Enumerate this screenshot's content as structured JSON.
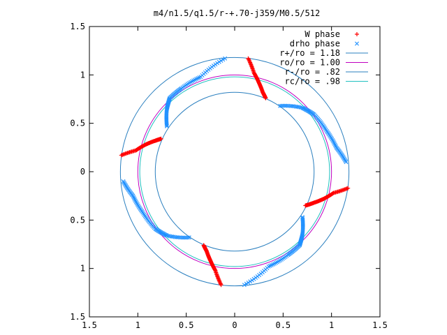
{
  "chart_data": {
    "type": "scatter",
    "title": "m4/n1.5/q1.5/r-+.70-j359/M0.5/512",
    "xlabel": "",
    "ylabel": "",
    "xlim": [
      -1.5,
      1.5
    ],
    "ylim": [
      -1.5,
      1.5
    ],
    "x_ticks": [
      -1.5,
      -1,
      -0.5,
      0,
      0.5,
      1,
      1.5
    ],
    "y_ticks": [
      -1.5,
      -1,
      -0.5,
      0,
      0.5,
      1,
      1.5
    ],
    "x_tick_labels": [
      "1.5",
      "1",
      "0.5",
      "0",
      "0.5",
      "1",
      "1.5"
    ],
    "y_tick_labels": [
      "1.5",
      "1",
      "0.5",
      "0",
      "0.5",
      "1",
      "1.5"
    ],
    "grid": false,
    "legend_position": "top-right",
    "circles": [
      {
        "name": "r+/ro = 1.18",
        "radius": 1.18,
        "color": "#2a7fbf"
      },
      {
        "name": "ro/ro = 1.00",
        "radius": 1.0,
        "color": "#c000c0"
      },
      {
        "name": "r-/ro = .82",
        "radius": 0.82,
        "color": "#2a7fbf"
      },
      {
        "name": "rc/ro = .98",
        "radius": 0.98,
        "color": "#20c0c0"
      }
    ],
    "series": [
      {
        "name": "W phase",
        "marker": "+",
        "color": "#ff0000",
        "arcs": [
          [
            [
              0.14,
              1.17
            ],
            [
              0.2,
              1.02
            ],
            [
              0.25,
              0.92
            ],
            [
              0.29,
              0.82
            ],
            [
              0.32,
              0.76
            ]
          ],
          [
            [
              -1.17,
              0.17
            ],
            [
              -1.02,
              0.22
            ],
            [
              -0.92,
              0.28
            ],
            [
              -0.82,
              0.32
            ],
            [
              -0.76,
              0.34
            ]
          ],
          [
            [
              -0.14,
              -1.17
            ],
            [
              -0.2,
              -1.02
            ],
            [
              -0.25,
              -0.92
            ],
            [
              -0.29,
              -0.82
            ],
            [
              -0.32,
              -0.76
            ]
          ],
          [
            [
              1.17,
              -0.17
            ],
            [
              1.02,
              -0.22
            ],
            [
              0.92,
              -0.28
            ],
            [
              0.82,
              -0.32
            ],
            [
              0.73,
              -0.35
            ]
          ]
        ]
      },
      {
        "name": "drho phase",
        "marker": "x",
        "color": "#1e90ff",
        "arcs": [
          [
            [
              -0.1,
              1.17
            ],
            [
              -0.35,
              0.98
            ],
            [
              -0.55,
              0.86
            ],
            [
              -0.67,
              0.76
            ],
            [
              -0.7,
              0.65
            ],
            [
              -0.7,
              0.47
            ]
          ],
          [
            [
              0.47,
              0.68
            ],
            [
              0.7,
              0.66
            ],
            [
              0.82,
              0.59
            ],
            [
              0.95,
              0.42
            ],
            [
              1.05,
              0.25
            ],
            [
              1.15,
              0.1
            ]
          ],
          [
            [
              0.1,
              -1.17
            ],
            [
              0.35,
              -0.98
            ],
            [
              0.55,
              -0.86
            ],
            [
              0.67,
              -0.76
            ],
            [
              0.7,
              -0.65
            ],
            [
              0.7,
              -0.47
            ]
          ],
          [
            [
              -0.47,
              -0.68
            ],
            [
              -0.7,
              -0.66
            ],
            [
              -0.82,
              -0.59
            ],
            [
              -0.95,
              -0.42
            ],
            [
              -1.05,
              -0.25
            ],
            [
              -1.15,
              -0.1
            ]
          ]
        ]
      }
    ]
  }
}
